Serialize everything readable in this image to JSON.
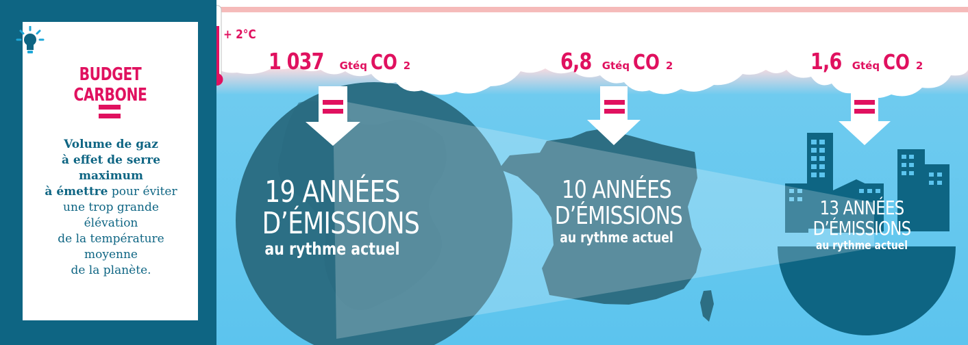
{
  "definition": {
    "title": "BUDGET CARBONE",
    "bold_line_1": "Volume de gaz",
    "bold_line_2": "à effet de serre",
    "bold_line_3": "maximum",
    "bold_line_4": "à émettre",
    "text_after_bold": " pour éviter",
    "text_line_1": "une trop grande",
    "text_line_2": "élévation",
    "text_line_3": "de la température",
    "text_line_4": "moyenne",
    "text_line_5": "de la planète."
  },
  "temperature": {
    "label": "+ 2°C"
  },
  "panels": [
    {
      "amount": "1 037",
      "unit": " Gtéq ",
      "co2": "CO",
      "sub": "2",
      "line1": "19 ANNÉES",
      "line2": "D’ÉMISSIONS",
      "line3": "au rythme actuel"
    },
    {
      "amount": "6,8",
      "unit": " Gtéq ",
      "co2": "CO",
      "sub": "2",
      "line1": "10 ANNÉES",
      "line2": "D’ÉMISSIONS",
      "line3": "au rythme actuel"
    },
    {
      "amount": "1,6",
      "unit": " Gtéq ",
      "co2": "CO",
      "sub": "2",
      "line1": "13 ANNÉES",
      "line2": "D’ÉMISSIONS",
      "line3": "au rythme actuel"
    }
  ],
  "colors": {
    "accent": "#e0115f",
    "panel": "#0e6583",
    "sky": "#5cc4ee",
    "teal_shape": "#2c6f85"
  },
  "icons": [
    "lightbulb-icon",
    "thermometer-icon",
    "globe-icon",
    "france-map-icon",
    "city-icon",
    "arrow-down-icon",
    "equals-icon"
  ]
}
